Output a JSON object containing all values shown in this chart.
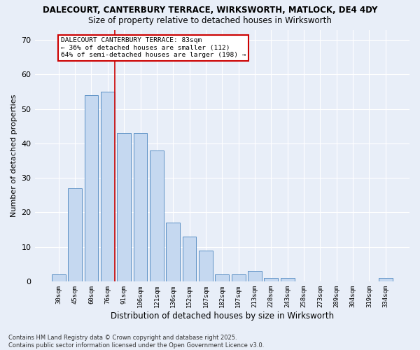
{
  "title1": "DALECOURT, CANTERBURY TERRACE, WIRKSWORTH, MATLOCK, DE4 4DY",
  "title2": "Size of property relative to detached houses in Wirksworth",
  "xlabel": "Distribution of detached houses by size in Wirksworth",
  "ylabel": "Number of detached properties",
  "categories": [
    "30sqm",
    "45sqm",
    "60sqm",
    "76sqm",
    "91sqm",
    "106sqm",
    "121sqm",
    "136sqm",
    "152sqm",
    "167sqm",
    "182sqm",
    "197sqm",
    "213sqm",
    "228sqm",
    "243sqm",
    "258sqm",
    "273sqm",
    "289sqm",
    "304sqm",
    "319sqm",
    "334sqm"
  ],
  "values": [
    2,
    27,
    54,
    55,
    43,
    43,
    38,
    17,
    13,
    9,
    2,
    2,
    3,
    1,
    1,
    0,
    0,
    0,
    0,
    0,
    1
  ],
  "bar_color": "#c5d8f0",
  "bar_edge_color": "#5a8fc4",
  "red_line_index": 3,
  "annotation_text": "DALECOURT CANTERBURY TERRACE: 83sqm\n← 36% of detached houses are smaller (112)\n64% of semi-detached houses are larger (198) →",
  "annotation_box_color": "#ffffff",
  "annotation_box_edge": "#cc0000",
  "red_line_color": "#cc0000",
  "ylim": [
    0,
    73
  ],
  "yticks": [
    0,
    10,
    20,
    30,
    40,
    50,
    60,
    70
  ],
  "background_color": "#e8eef8",
  "grid_color": "#ffffff",
  "footnote": "Contains HM Land Registry data © Crown copyright and database right 2025.\nContains public sector information licensed under the Open Government Licence v3.0."
}
